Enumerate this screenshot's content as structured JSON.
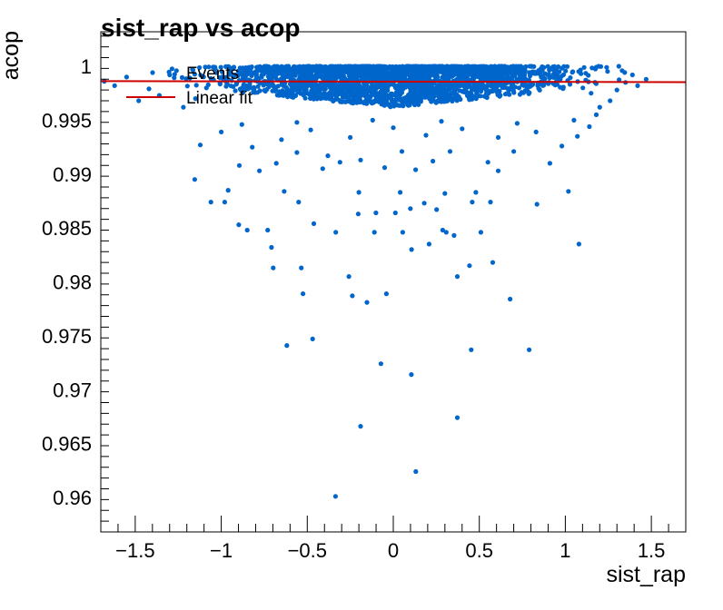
{
  "chart_data": {
    "type": "scatter",
    "title": "sist_rap vs acop",
    "xlabel": "sist_rap",
    "ylabel": "acop",
    "xlim": [
      -1.7,
      1.7
    ],
    "ylim": [
      0.9568,
      1.0032
    ],
    "x_ticks": [
      -1.5,
      -1,
      -0.5,
      0,
      0.5,
      1,
      1.5
    ],
    "x_tick_labels": [
      "−1.5",
      "−1",
      "−0.5",
      "0",
      "0.5",
      "1",
      "1.5"
    ],
    "y_ticks": [
      0.96,
      0.965,
      0.97,
      0.975,
      0.98,
      0.985,
      0.99,
      0.995,
      1
    ],
    "y_tick_labels": [
      "0.96",
      "0.965",
      "0.97",
      "0.975",
      "0.98",
      "0.985",
      "0.99",
      "0.995",
      "1"
    ],
    "grid": false,
    "legend": {
      "position": "top-left",
      "entries": [
        "Events",
        "Linear fit"
      ]
    },
    "colors": {
      "points": "#0066cc",
      "fit": "#cc0000",
      "axis": "#000000"
    },
    "series": [
      {
        "name": "Events",
        "kind": "scatter",
        "points": [
          [
            -0.336,
            0.9601
          ],
          [
            0.131,
            0.9624
          ],
          [
            -0.19,
            0.9666
          ],
          [
            0.372,
            0.9674
          ],
          [
            0.105,
            0.9714
          ],
          [
            -0.072,
            0.9724
          ],
          [
            -0.619,
            0.9741
          ],
          [
            -0.469,
            0.9747
          ],
          [
            0.453,
            0.9737
          ],
          [
            0.79,
            0.9737
          ],
          [
            -0.153,
            0.9781
          ],
          [
            -0.238,
            0.9787
          ],
          [
            -0.525,
            0.9789
          ],
          [
            -0.04,
            0.9789
          ],
          [
            0.679,
            0.9784
          ],
          [
            -0.258,
            0.9805
          ],
          [
            0.372,
            0.9805
          ],
          [
            -0.698,
            0.9813
          ],
          [
            -0.535,
            0.9813
          ],
          [
            0.443,
            0.9815
          ],
          [
            0.578,
            0.9818
          ],
          [
            -0.708,
            0.9832
          ],
          [
            0.106,
            0.983
          ],
          [
            1.079,
            0.9835
          ],
          [
            0.208,
            0.9835
          ],
          [
            0.353,
            0.9843
          ],
          [
            -0.849,
            0.9848
          ],
          [
            -0.73,
            0.9848
          ],
          [
            -0.334,
            0.9846
          ],
          [
            -0.11,
            0.9846
          ],
          [
            0.055,
            0.9846
          ],
          [
            0.287,
            0.9848
          ],
          [
            0.509,
            0.9846
          ],
          [
            -0.898,
            0.9853
          ],
          [
            -0.462,
            0.9854
          ],
          [
            0.308,
            0.9846
          ],
          [
            -0.204,
            0.9863
          ],
          [
            -0.101,
            0.9864
          ],
          [
            0.012,
            0.9864
          ],
          [
            0.099,
            0.9868
          ],
          [
            0.252,
            0.9867
          ],
          [
            -1.06,
            0.9874
          ],
          [
            -0.98,
            0.9874
          ],
          [
            -0.55,
            0.9874
          ],
          [
            0.18,
            0.9873
          ],
          [
            0.459,
            0.9874
          ],
          [
            0.565,
            0.9874
          ],
          [
            0.835,
            0.9872
          ],
          [
            -0.96,
            0.9885
          ],
          [
            -0.634,
            0.9884
          ],
          [
            -0.2,
            0.9883
          ],
          [
            0.04,
            0.9883
          ],
          [
            0.3,
            0.9882
          ],
          [
            0.48,
            0.9883
          ],
          [
            1.018,
            0.9884
          ],
          [
            -1.154,
            0.9895
          ],
          [
            -0.778,
            0.9903
          ],
          [
            -0.41,
            0.9905
          ],
          [
            -0.05,
            0.9906
          ],
          [
            0.13,
            0.9904
          ],
          [
            0.61,
            0.9903
          ],
          [
            -0.895,
            0.9908
          ],
          [
            -0.68,
            0.991
          ],
          [
            -0.31,
            0.9911
          ],
          [
            -0.19,
            0.9913
          ],
          [
            0.23,
            0.9912
          ],
          [
            0.55,
            0.9911
          ],
          [
            0.91,
            0.991
          ],
          [
            -1.122,
            0.9927
          ],
          [
            -0.82,
            0.9925
          ],
          [
            -0.56,
            0.992
          ],
          [
            -0.38,
            0.9917
          ],
          [
            0.05,
            0.9921
          ],
          [
            0.33,
            0.9921
          ],
          [
            0.7,
            0.9921
          ],
          [
            0.98,
            0.9926
          ],
          [
            -0.65,
            0.9932
          ],
          [
            -0.25,
            0.9934
          ],
          [
            0.19,
            0.9936
          ],
          [
            0.61,
            0.9934
          ],
          [
            1.07,
            0.9935
          ],
          [
            -1.0,
            0.9939
          ],
          [
            -0.48,
            0.9941
          ],
          [
            0.0,
            0.9943
          ],
          [
            0.4,
            0.9942
          ],
          [
            0.83,
            0.9939
          ],
          [
            1.14,
            0.9944
          ],
          [
            -0.88,
            0.9946
          ],
          [
            -0.56,
            0.9948
          ],
          [
            -0.12,
            0.995
          ],
          [
            0.28,
            0.9949
          ],
          [
            0.72,
            0.9947
          ],
          [
            1.05,
            0.995
          ],
          [
            -1.36,
            0.9973
          ],
          [
            -1.48,
            0.9968
          ],
          [
            -1.42,
            0.9979
          ],
          [
            -1.55,
            0.999
          ],
          [
            -1.62,
            0.9982
          ],
          [
            -1.68,
            0.9986
          ],
          [
            -1.3,
            0.9992
          ],
          [
            -1.22,
            0.9962
          ],
          [
            -1.15,
            0.997
          ],
          [
            -1.26,
            0.9996
          ],
          [
            1.2,
            0.9962
          ],
          [
            1.26,
            0.9968
          ],
          [
            1.3,
            0.9978
          ],
          [
            1.35,
            0.9985
          ],
          [
            1.39,
            0.9992
          ],
          [
            1.47,
            0.9988
          ],
          [
            1.33,
            0.9996
          ],
          [
            1.24,
            0.9999
          ],
          [
            1.42,
            0.9982
          ],
          [
            1.15,
            0.9975
          ],
          [
            1.18,
            0.9955
          ]
        ]
      },
      {
        "name": "Linear fit",
        "kind": "line",
        "points": [
          [
            -1.7,
            0.99862
          ],
          [
            1.7,
            0.99853
          ]
        ]
      }
    ]
  }
}
